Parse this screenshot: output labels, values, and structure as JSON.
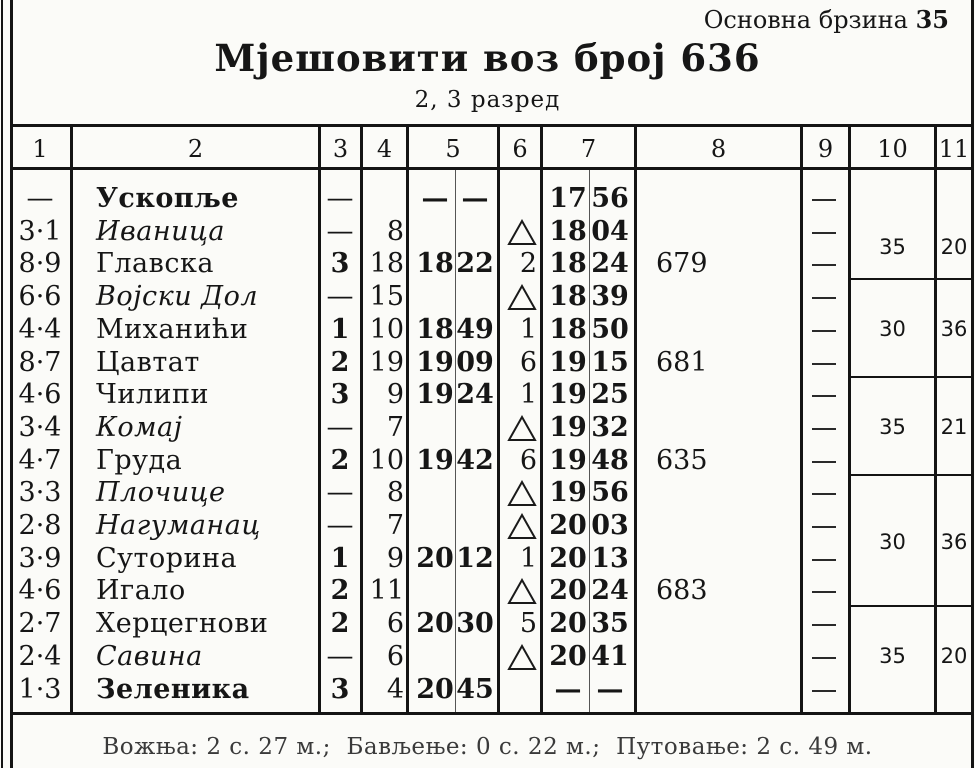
{
  "header": {
    "base_speed_label": "Основна брзина",
    "base_speed_value": "35",
    "title": "Мјешовити воз број 636",
    "subtitle": "2, 3 разред"
  },
  "columns": [
    "1",
    "2",
    "3",
    "4",
    "5",
    "6",
    "7",
    "8",
    "9",
    "10",
    "11"
  ],
  "rows": [
    {
      "km": "—",
      "station": "Ускопље",
      "style": "bold",
      "c3": "—",
      "c4": "",
      "arr_h": "—",
      "arr_m": "—",
      "c6": "",
      "dep_h": "17",
      "dep_m": "56",
      "cross": ""
    },
    {
      "km": "3·1",
      "station": "Иваница",
      "style": "italic",
      "c3": "—",
      "c4": "8",
      "arr_h": "",
      "arr_m": "",
      "c6": "△",
      "dep_h": "18",
      "dep_m": "04",
      "cross": ""
    },
    {
      "km": "8·9",
      "station": "Главска",
      "style": "normal",
      "c3": "3",
      "c4": "18",
      "arr_h": "18",
      "arr_m": "22",
      "c6": "2",
      "dep_h": "18",
      "dep_m": "24",
      "cross": "679"
    },
    {
      "km": "6·6",
      "station": "Војски Дол",
      "style": "italic",
      "c3": "—",
      "c4": "15",
      "arr_h": "",
      "arr_m": "",
      "c6": "△",
      "dep_h": "18",
      "dep_m": "39",
      "cross": ""
    },
    {
      "km": "4·4",
      "station": "Миханићи",
      "style": "normal",
      "c3": "1",
      "c4": "10",
      "arr_h": "18",
      "arr_m": "49",
      "c6": "1",
      "dep_h": "18",
      "dep_m": "50",
      "cross": ""
    },
    {
      "km": "8·7",
      "station": "Цавтат",
      "style": "normal",
      "c3": "2",
      "c4": "19",
      "arr_h": "19",
      "arr_m": "09",
      "c6": "6",
      "dep_h": "19",
      "dep_m": "15",
      "cross": "681"
    },
    {
      "km": "4·6",
      "station": "Чилипи",
      "style": "normal",
      "c3": "3",
      "c4": "9",
      "arr_h": "19",
      "arr_m": "24",
      "c6": "1",
      "dep_h": "19",
      "dep_m": "25",
      "cross": ""
    },
    {
      "km": "3·4",
      "station": "Комај",
      "style": "italic",
      "c3": "—",
      "c4": "7",
      "arr_h": "",
      "arr_m": "",
      "c6": "△",
      "dep_h": "19",
      "dep_m": "32",
      "cross": ""
    },
    {
      "km": "4·7",
      "station": "Груда",
      "style": "normal",
      "c3": "2",
      "c4": "10",
      "arr_h": "19",
      "arr_m": "42",
      "c6": "6",
      "dep_h": "19",
      "dep_m": "48",
      "cross": "635"
    },
    {
      "km": "3·3",
      "station": "Плочице",
      "style": "italic",
      "c3": "—",
      "c4": "8",
      "arr_h": "",
      "arr_m": "",
      "c6": "△",
      "dep_h": "19",
      "dep_m": "56",
      "cross": ""
    },
    {
      "km": "2·8",
      "station": "Нагуманац",
      "style": "italic",
      "c3": "—",
      "c4": "7",
      "arr_h": "",
      "arr_m": "",
      "c6": "△",
      "dep_h": "20",
      "dep_m": "03",
      "cross": ""
    },
    {
      "km": "3·9",
      "station": "Суторина",
      "style": "normal",
      "c3": "1",
      "c4": "9",
      "arr_h": "20",
      "arr_m": "12",
      "c6": "1",
      "dep_h": "20",
      "dep_m": "13",
      "cross": ""
    },
    {
      "km": "4·6",
      "station": "Игало",
      "style": "normal",
      "c3": "2",
      "c4": "11",
      "arr_h": "",
      "arr_m": "",
      "c6": "△",
      "dep_h": "20",
      "dep_m": "24",
      "cross": "683"
    },
    {
      "km": "2·7",
      "station": "Херцегнови",
      "style": "normal",
      "c3": "2",
      "c4": "6",
      "arr_h": "20",
      "arr_m": "30",
      "c6": "5",
      "dep_h": "20",
      "dep_m": "35",
      "cross": ""
    },
    {
      "km": "2·4",
      "station": "Савина",
      "style": "italic",
      "c3": "—",
      "c4": "6",
      "arr_h": "",
      "arr_m": "",
      "c6": "△",
      "dep_h": "20",
      "dep_m": "41",
      "cross": ""
    },
    {
      "km": "1·3",
      "station": "Зеленика",
      "style": "bold",
      "c3": "3",
      "c4": "4",
      "arr_h": "20",
      "arr_m": "45",
      "c6": "",
      "dep_h": "—",
      "dep_m": "—",
      "cross": ""
    }
  ],
  "speed_groups": [
    {
      "speed": "35",
      "extra": "20",
      "first_row": 1,
      "last_row": 2
    },
    {
      "speed": "30",
      "extra": "36",
      "first_row": 3,
      "last_row": 5
    },
    {
      "speed": "35",
      "extra": "21",
      "first_row": 6,
      "last_row": 8
    },
    {
      "speed": "30",
      "extra": "36",
      "first_row": 9,
      "last_row": 12
    },
    {
      "speed": "35",
      "extra": "20",
      "first_row": 13,
      "last_row": 15
    }
  ],
  "footer": {
    "text": "Вожња: 2 с. 27 м.;  Бављење: 0 с. 22 м.;  Путовање: 2 с. 49 м."
  }
}
